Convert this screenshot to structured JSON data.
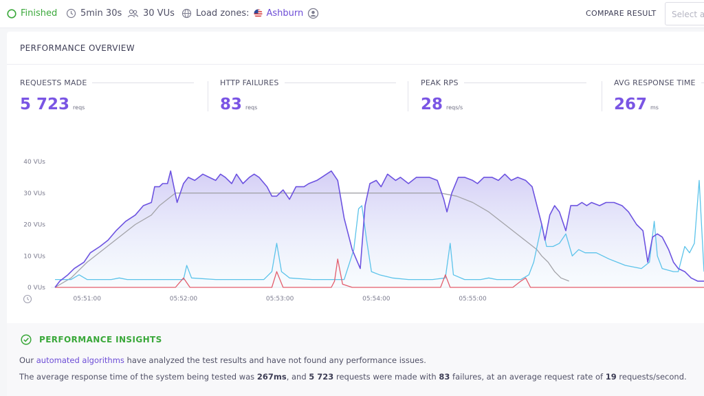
{
  "topbar": {
    "status": "Finished",
    "duration": "5min 30s",
    "vus": "30 VUs",
    "load_zones_label": "Load zones:",
    "load_zone": "Ashburn",
    "compare_label": "COMPARE RESULT",
    "select_placeholder": "Select a"
  },
  "overview": {
    "title": "PERFORMANCE OVERVIEW",
    "metrics": [
      {
        "label": "REQUESTS MADE",
        "value": "5 723",
        "unit": "reqs"
      },
      {
        "label": "HTTP FAILURES",
        "value": "83",
        "unit": "reqs"
      },
      {
        "label": "PEAK RPS",
        "value": "28",
        "unit": "reqs/s"
      },
      {
        "label": "AVG RESPONSE TIME",
        "value": "267",
        "unit": "ms"
      }
    ]
  },
  "colors": {
    "vus": "#a3a3a8",
    "rps": "#6c52e0",
    "response_time": "#5bc3ea",
    "failures": "#e35c6b",
    "accent": "#7a55e4",
    "success": "#3aa83a"
  },
  "chart_data": {
    "type": "line",
    "y_ticks": [
      "40 VUs",
      "30 VUs",
      "20 VUs",
      "10 VUs",
      "0 VUs"
    ],
    "x_ticks": [
      "05:51:00",
      "05:52:00",
      "05:53:00",
      "05:54:00",
      "05:55:00"
    ],
    "ylim": [
      0,
      40
    ],
    "x_unit": "seconds after 05:50:40",
    "series": [
      {
        "key": "vus",
        "points": [
          [
            0,
            0
          ],
          [
            10,
            3
          ],
          [
            20,
            8
          ],
          [
            30,
            12
          ],
          [
            40,
            16
          ],
          [
            50,
            20
          ],
          [
            60,
            23
          ],
          [
            65,
            26
          ],
          [
            70,
            28
          ],
          [
            75,
            30
          ],
          [
            150,
            30
          ],
          [
            200,
            30
          ],
          [
            225,
            30
          ],
          [
            240,
            30
          ],
          [
            250,
            29
          ],
          [
            260,
            27
          ],
          [
            270,
            24
          ],
          [
            280,
            20
          ],
          [
            290,
            16
          ],
          [
            295,
            14
          ],
          [
            300,
            12
          ],
          [
            303,
            10
          ],
          [
            307,
            8
          ],
          [
            311,
            5
          ],
          [
            315,
            3
          ],
          [
            320,
            2
          ]
        ]
      },
      {
        "key": "rps",
        "points": [
          [
            0,
            0
          ],
          [
            3,
            2
          ],
          [
            8,
            4
          ],
          [
            12,
            6
          ],
          [
            18,
            8
          ],
          [
            22,
            11
          ],
          [
            28,
            13
          ],
          [
            33,
            15
          ],
          [
            38,
            18
          ],
          [
            44,
            21
          ],
          [
            50,
            23
          ],
          [
            55,
            26
          ],
          [
            60,
            27
          ],
          [
            62,
            32
          ],
          [
            65,
            32
          ],
          [
            67,
            33
          ],
          [
            70,
            33
          ],
          [
            72,
            37
          ],
          [
            76,
            27
          ],
          [
            80,
            33
          ],
          [
            83,
            35
          ],
          [
            87,
            34
          ],
          [
            92,
            36
          ],
          [
            96,
            35
          ],
          [
            100,
            34
          ],
          [
            103,
            36
          ],
          [
            106,
            35
          ],
          [
            110,
            33
          ],
          [
            113,
            36
          ],
          [
            117,
            33
          ],
          [
            121,
            35
          ],
          [
            124,
            36
          ],
          [
            127,
            35
          ],
          [
            132,
            32
          ],
          [
            135,
            29
          ],
          [
            138,
            29
          ],
          [
            142,
            31
          ],
          [
            146,
            28
          ],
          [
            150,
            32
          ],
          [
            155,
            32
          ],
          [
            158,
            33
          ],
          [
            163,
            34
          ],
          [
            166,
            35
          ],
          [
            172,
            37
          ],
          [
            176,
            34
          ],
          [
            180,
            22
          ],
          [
            185,
            12
          ],
          [
            190,
            6
          ],
          [
            193,
            26
          ],
          [
            196,
            33
          ],
          [
            200,
            34
          ],
          [
            203,
            32
          ],
          [
            207,
            36
          ],
          [
            212,
            34
          ],
          [
            215,
            35
          ],
          [
            220,
            33
          ],
          [
            225,
            35
          ],
          [
            233,
            35
          ],
          [
            238,
            34
          ],
          [
            242,
            28
          ],
          [
            244,
            24
          ],
          [
            247,
            30
          ],
          [
            251,
            35
          ],
          [
            255,
            35
          ],
          [
            260,
            34
          ],
          [
            263,
            33
          ],
          [
            267,
            35
          ],
          [
            272,
            35
          ],
          [
            276,
            34
          ],
          [
            280,
            36
          ],
          [
            284,
            34
          ],
          [
            288,
            35
          ],
          [
            293,
            34
          ],
          [
            297,
            32
          ],
          [
            300,
            26
          ],
          [
            303,
            20
          ],
          [
            305,
            15
          ],
          [
            308,
            23
          ],
          [
            311,
            26
          ],
          [
            314,
            24
          ],
          [
            318,
            18
          ],
          [
            321,
            26
          ],
          [
            325,
            26
          ],
          [
            328,
            27
          ],
          [
            331,
            26
          ],
          [
            334,
            27
          ],
          [
            339,
            26
          ],
          [
            343,
            27
          ],
          [
            348,
            27
          ],
          [
            353,
            26
          ],
          [
            357,
            24
          ],
          [
            362,
            20
          ],
          [
            366,
            18
          ],
          [
            369,
            8
          ],
          [
            372,
            16
          ],
          [
            375,
            17
          ],
          [
            378,
            16
          ],
          [
            382,
            12
          ],
          [
            385,
            8
          ],
          [
            388,
            6
          ],
          [
            392,
            5
          ],
          [
            396,
            3
          ],
          [
            400,
            2
          ],
          [
            404,
            2
          ]
        ]
      },
      {
        "key": "response_time",
        "points": [
          [
            0,
            2.5
          ],
          [
            10,
            2.5
          ],
          [
            15,
            4
          ],
          [
            20,
            2.5
          ],
          [
            35,
            2.5
          ],
          [
            40,
            3
          ],
          [
            45,
            2.5
          ],
          [
            65,
            2.5
          ],
          [
            80,
            2.5
          ],
          [
            82,
            7
          ],
          [
            85,
            3
          ],
          [
            100,
            2.5
          ],
          [
            110,
            2.5
          ],
          [
            120,
            2.5
          ],
          [
            130,
            2.5
          ],
          [
            135,
            5
          ],
          [
            138,
            14
          ],
          [
            141,
            5
          ],
          [
            146,
            3
          ],
          [
            160,
            2.5
          ],
          [
            180,
            2.5
          ],
          [
            186,
            12
          ],
          [
            189,
            25
          ],
          [
            191,
            26
          ],
          [
            194,
            15
          ],
          [
            197,
            5
          ],
          [
            202,
            4
          ],
          [
            210,
            3
          ],
          [
            220,
            2.5
          ],
          [
            235,
            2.5
          ],
          [
            243,
            3
          ],
          [
            246,
            14
          ],
          [
            248,
            4
          ],
          [
            255,
            2.5
          ],
          [
            265,
            2.5
          ],
          [
            270,
            3
          ],
          [
            275,
            2.5
          ],
          [
            290,
            2.5
          ],
          [
            295,
            4
          ],
          [
            298,
            8
          ],
          [
            303,
            20
          ],
          [
            306,
            13
          ],
          [
            310,
            13
          ],
          [
            314,
            14
          ],
          [
            318,
            17
          ],
          [
            322,
            10
          ],
          [
            326,
            12
          ],
          [
            330,
            11
          ],
          [
            337,
            11
          ],
          [
            345,
            9
          ],
          [
            355,
            7
          ],
          [
            365,
            6
          ],
          [
            370,
            8
          ],
          [
            373,
            21
          ],
          [
            375,
            10
          ],
          [
            378,
            6
          ],
          [
            385,
            5
          ],
          [
            388,
            5
          ],
          [
            392,
            13
          ],
          [
            395,
            11
          ],
          [
            398,
            14
          ],
          [
            401,
            34
          ],
          [
            404,
            5
          ]
        ]
      },
      {
        "key": "failures",
        "points": [
          [
            0,
            0
          ],
          [
            75,
            0
          ],
          [
            80,
            3
          ],
          [
            84,
            0
          ],
          [
            135,
            0
          ],
          [
            138,
            5
          ],
          [
            142,
            0
          ],
          [
            172,
            0
          ],
          [
            174,
            2
          ],
          [
            176,
            9
          ],
          [
            179,
            1
          ],
          [
            185,
            0
          ],
          [
            240,
            0
          ],
          [
            243,
            4
          ],
          [
            246,
            0
          ],
          [
            285,
            0
          ],
          [
            290,
            2
          ],
          [
            293,
            3
          ],
          [
            296,
            0
          ],
          [
            404,
            0
          ]
        ]
      }
    ]
  },
  "insights": {
    "title": "PERFORMANCE INSIGHTS",
    "line1_pre": "Our ",
    "line1_link": "automated algorithms",
    "line1_post": " have analyzed the test results and have not found any performance issues.",
    "line2_a": "The average response time of the system being tested was ",
    "line2_b": "267ms",
    "line2_c": ", and ",
    "line2_d": "5 723",
    "line2_e": " requests were made with ",
    "line2_f": "83",
    "line2_g": " failures, at an average request rate of ",
    "line2_h": "19",
    "line2_i": " requests/second."
  }
}
